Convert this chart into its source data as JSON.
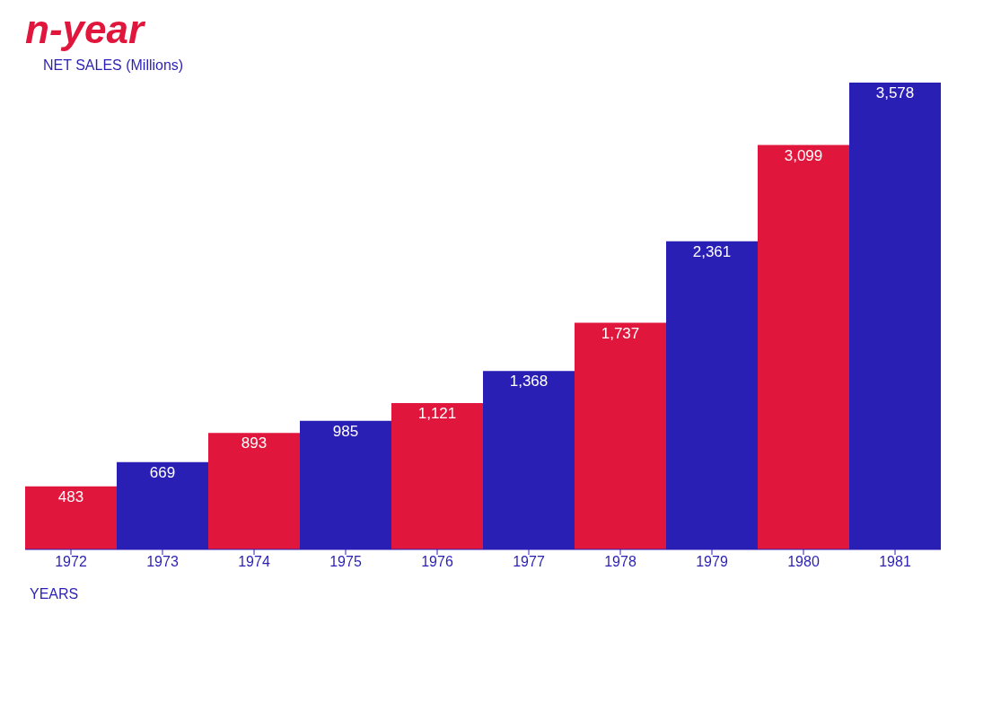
{
  "chart_data": {
    "type": "bar",
    "title": "n-year",
    "xlabel": "YEARS",
    "ylabel": "NET SALES (Millions)",
    "categories": [
      "1972",
      "1973",
      "1974",
      "1975",
      "1976",
      "1977",
      "1978",
      "1979",
      "1980",
      "1981"
    ],
    "values": [
      483,
      669,
      893,
      985,
      1121,
      1368,
      1737,
      2361,
      3099,
      3578
    ],
    "colors": [
      "#e0163c",
      "#2a1fb5",
      "#e0163c",
      "#2a1fb5",
      "#e0163c",
      "#2a1fb5",
      "#e0163c",
      "#2a1fb5",
      "#e0163c",
      "#2a1fb5"
    ],
    "value_labels": [
      "483",
      "669",
      "893",
      "985",
      "1,121",
      "1,368",
      "1,737",
      "2,361",
      "3,099",
      "3,578"
    ],
    "grid": false,
    "legend": false
  }
}
